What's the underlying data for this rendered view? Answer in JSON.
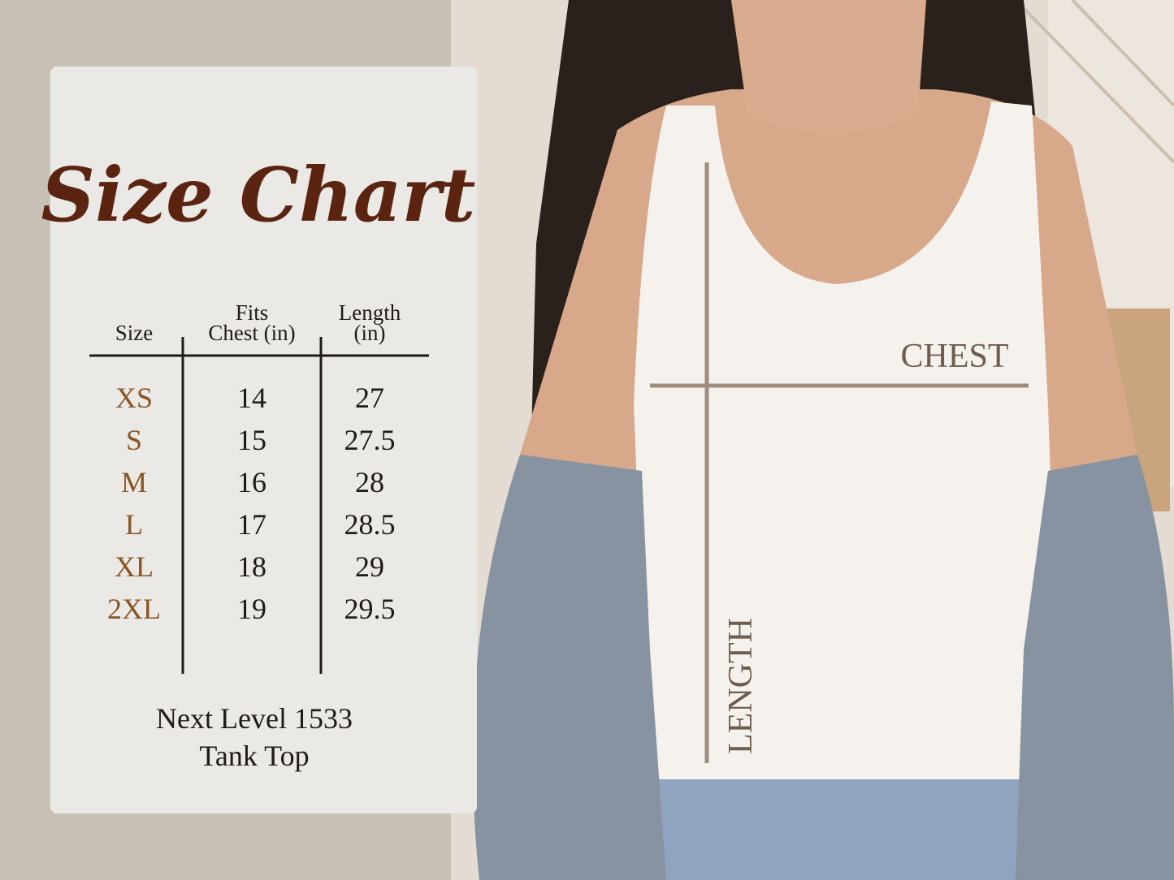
{
  "title": "Size Chart",
  "table": {
    "header": [
      [
        "Size"
      ],
      [
        "Fits",
        "Chest (in)"
      ],
      [
        "Length",
        "(in)"
      ]
    ],
    "rows": [
      [
        "XS",
        "14",
        "27"
      ],
      [
        "S",
        "15",
        "27.5"
      ],
      [
        "M",
        "16",
        "28"
      ],
      [
        "L",
        "17",
        "28.5"
      ],
      [
        "XL",
        "18",
        "29"
      ],
      [
        "2XL",
        "19",
        "29.5"
      ]
    ]
  },
  "footer": [
    "Next Level 1533",
    "Tank Top"
  ],
  "photo_labels": {
    "chest": "CHEST",
    "length": "LENGTH"
  }
}
